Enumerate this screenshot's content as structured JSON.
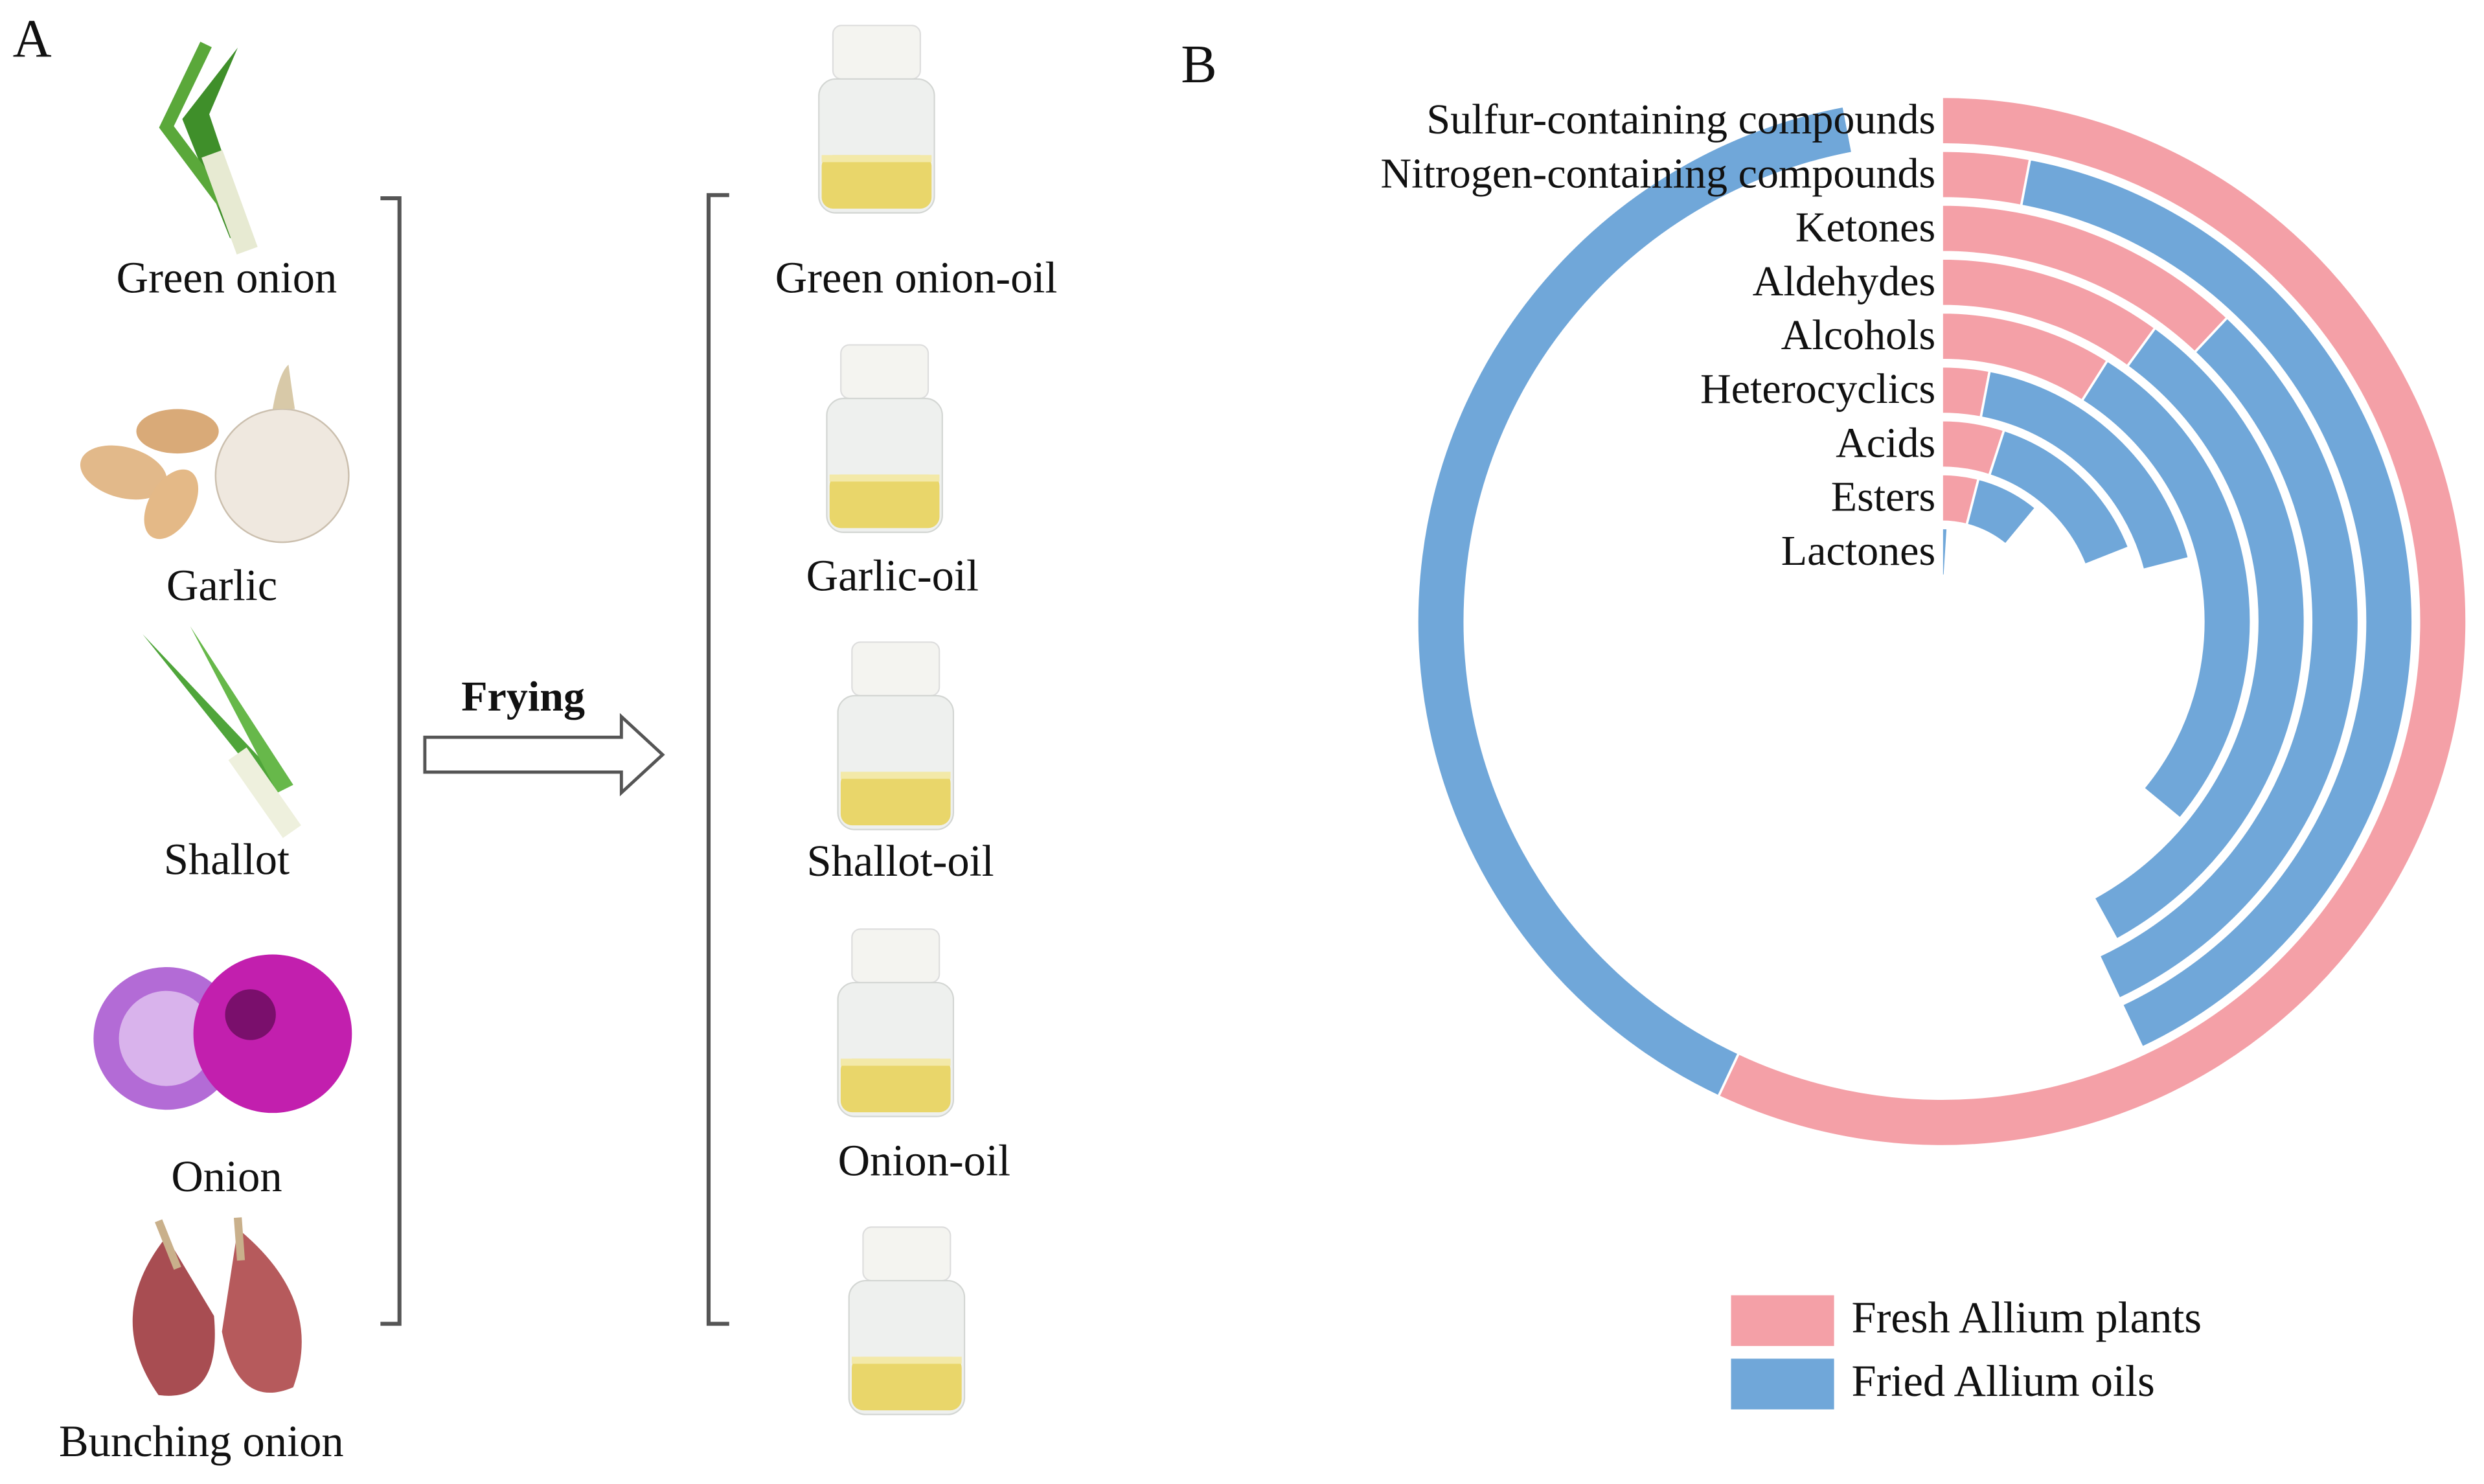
{
  "panel_a": {
    "label": "A",
    "plants": [
      "Green onion",
      "Garlic",
      "Shallot",
      "Onion",
      "Bunching onion"
    ],
    "process": "Frying",
    "oils": [
      "Green onion-oil",
      "Garlic-oil",
      "Shallot-oil",
      "Onion-oil"
    ]
  },
  "chart_data": {
    "type": "radial_bar",
    "panel_label": "B",
    "categories": [
      "Sulfur-containing compounds",
      "Nitrogen-containing compounds",
      "Ketones",
      "Aldehydes",
      "Alcohols",
      "Heterocyclics",
      "Acids",
      "Esters",
      "Lactones"
    ],
    "series": [
      {
        "name": "Fresh Allium plants",
        "color": "#f4a0a7",
        "values": [
          57,
          3,
          12,
          10,
          9,
          3,
          5,
          4,
          0
        ]
      },
      {
        "name": "Fried Allium oils",
        "color": "#70a7d9",
        "values": [
          40,
          40,
          31,
          32,
          27,
          18,
          14,
          7,
          1
        ]
      }
    ],
    "xlim": [
      0,
      100
    ],
    "stacked": true
  }
}
